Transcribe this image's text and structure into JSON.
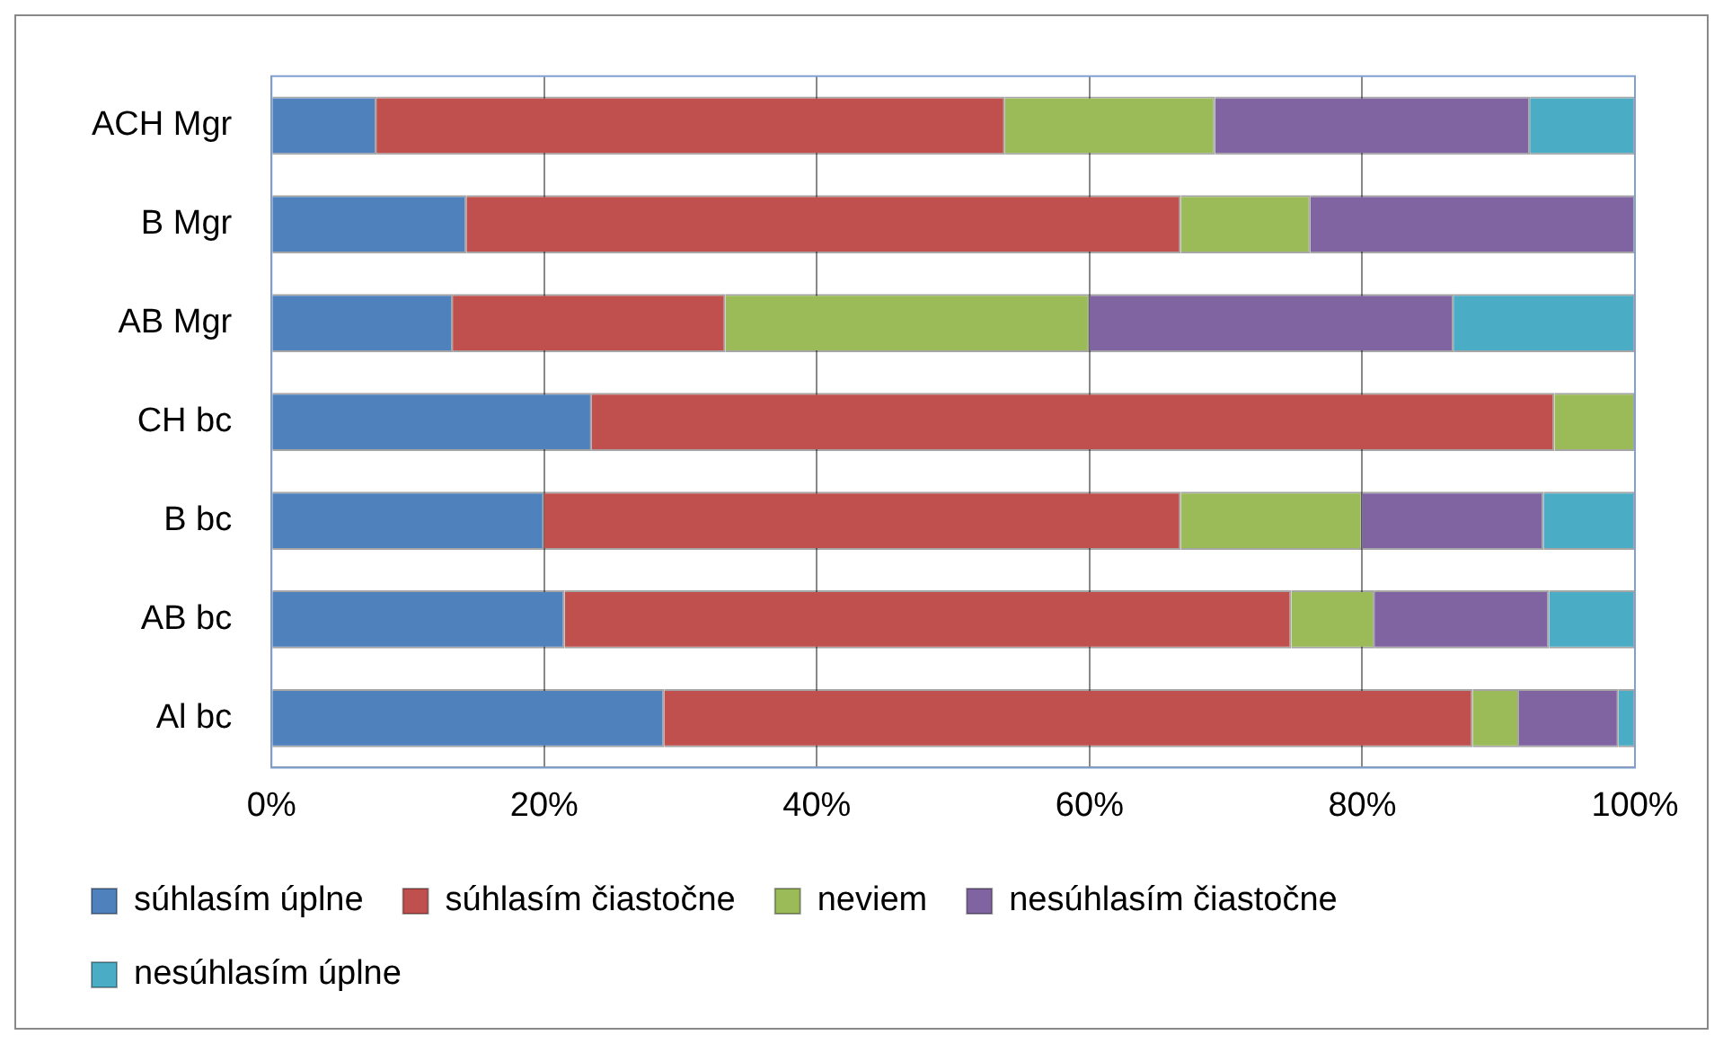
{
  "chart_data": {
    "type": "bar",
    "orientation": "horizontal",
    "stacked": true,
    "categories": [
      "ACH Mgr",
      "B Mgr",
      "AB Mgr",
      "CH bc",
      "B bc",
      "AB bc",
      "Al bc"
    ],
    "series": [
      {
        "name": "súhlasím úplne",
        "color": "#4f81bd",
        "values": [
          7.7,
          14.3,
          13.3,
          23.5,
          20,
          21.5,
          28.8
        ]
      },
      {
        "name": "súhlasím čiastočne",
        "color": "#c0504d",
        "values": [
          46.1,
          52.4,
          20,
          70.6,
          46.7,
          53.3,
          59.3
        ]
      },
      {
        "name": "neviem",
        "color": "#9bbb59",
        "values": [
          15.4,
          9.5,
          26.7,
          5.9,
          13.3,
          6.1,
          3.4
        ]
      },
      {
        "name": "nesúhlasím čiastočne",
        "color": "#8064a2",
        "values": [
          23.1,
          23.8,
          26.7,
          0,
          13.3,
          12.8,
          7.3
        ]
      },
      {
        "name": "nesúhlasím úplne",
        "color": "#4bacc6",
        "values": [
          7.7,
          0,
          13.3,
          0,
          6.7,
          6.3,
          1.2
        ]
      }
    ],
    "xlim": [
      0,
      100
    ],
    "xticks": [
      {
        "value": 0,
        "label": "0%"
      },
      {
        "value": 20,
        "label": "20%"
      },
      {
        "value": 40,
        "label": "40%"
      },
      {
        "value": 60,
        "label": "60%"
      },
      {
        "value": 80,
        "label": "80%"
      },
      {
        "value": 100,
        "label": "100%"
      }
    ],
    "grid": "x",
    "legend": "bottom"
  }
}
